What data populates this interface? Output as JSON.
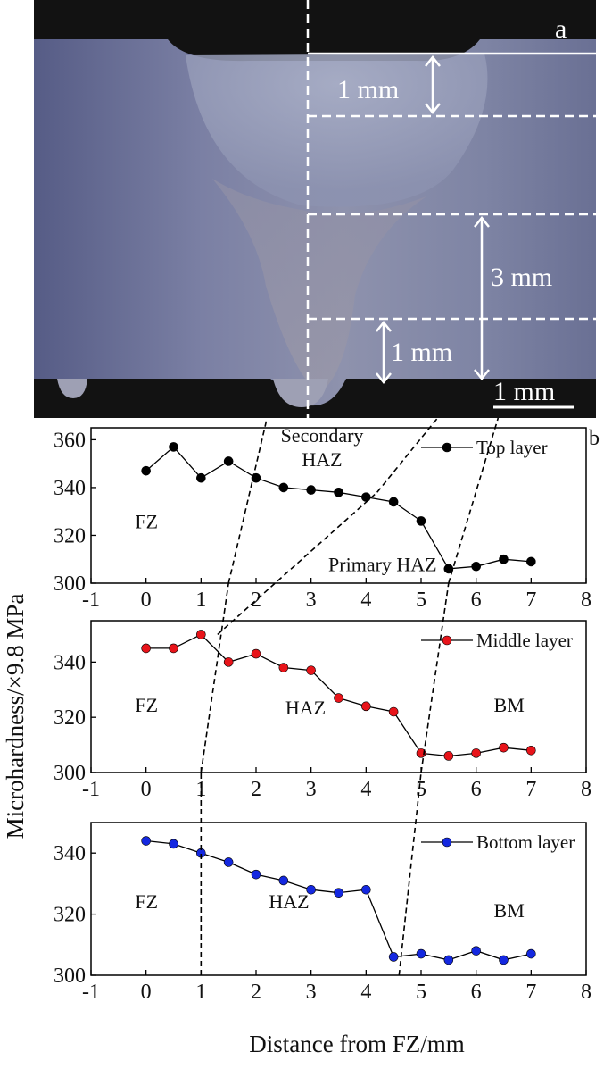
{
  "photo": {
    "panel_label": "a",
    "dim_top": "1 mm",
    "dim_right": "3 mm",
    "dim_bottom": "1 mm",
    "scale_bar": "1 mm"
  },
  "figure": {
    "panel_label": "b",
    "ylabel": "Microhardness/×9.8 MPa",
    "xlabel": "Distance from FZ/mm"
  },
  "chart_data": [
    {
      "type": "line",
      "series": [
        {
          "name": "Top layer",
          "color": "#000000",
          "x": [
            0,
            0.5,
            1,
            1.5,
            2,
            2.5,
            3,
            3.5,
            4,
            4.5,
            5,
            5.5,
            6,
            6.5,
            7
          ],
          "values": [
            347,
            357,
            344,
            351,
            344,
            340,
            339,
            338,
            336,
            334,
            326,
            306,
            307,
            310,
            309
          ]
        }
      ],
      "xlim": [
        -1,
        8
      ],
      "ylim": [
        300,
        365
      ],
      "xticks": [
        -1,
        0,
        1,
        2,
        3,
        4,
        5,
        6,
        7,
        8
      ],
      "yticks": [
        300,
        320,
        340,
        360
      ],
      "annotations": [
        "FZ",
        "Secondary",
        "HAZ",
        "Primary HAZ"
      ],
      "legend": "top-right"
    },
    {
      "type": "line",
      "series": [
        {
          "name": "Middle layer",
          "color": "#e8141a",
          "x": [
            0,
            0.5,
            1,
            1.5,
            2,
            2.5,
            3,
            3.5,
            4,
            4.5,
            5,
            5.5,
            6,
            6.5,
            7
          ],
          "values": [
            345,
            345,
            350,
            340,
            343,
            338,
            337,
            327,
            324,
            322,
            307,
            306,
            307,
            309,
            308
          ]
        }
      ],
      "xlim": [
        -1,
        8
      ],
      "ylim": [
        300,
        355
      ],
      "xticks": [
        -1,
        0,
        1,
        2,
        3,
        4,
        5,
        6,
        7,
        8
      ],
      "yticks": [
        300,
        320,
        340
      ],
      "annotations": [
        "FZ",
        "HAZ",
        "BM"
      ],
      "legend": "top-right"
    },
    {
      "type": "line",
      "series": [
        {
          "name": "Bottom layer",
          "color": "#1428e0",
          "x": [
            0,
            0.5,
            1,
            1.5,
            2,
            2.5,
            3,
            3.5,
            4,
            4.5,
            5,
            5.5,
            6,
            6.5,
            7
          ],
          "values": [
            344,
            343,
            340,
            337,
            333,
            331,
            328,
            327,
            328,
            306,
            307,
            305,
            308,
            305,
            307
          ]
        }
      ],
      "xlim": [
        -1,
        8
      ],
      "ylim": [
        300,
        350
      ],
      "xticks": [
        -1,
        0,
        1,
        2,
        3,
        4,
        5,
        6,
        7,
        8
      ],
      "yticks": [
        300,
        320,
        340
      ],
      "annotations": [
        "FZ",
        "HAZ",
        "BM"
      ],
      "legend": "top-right"
    }
  ]
}
